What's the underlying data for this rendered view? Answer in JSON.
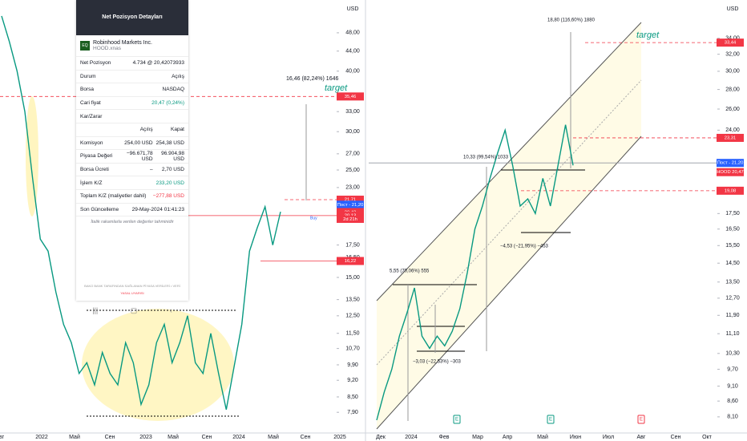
{
  "popup": {
    "title": "Net Pozisyon Detayları",
    "logo": "EQ",
    "company": "Robinhood Markets Inc.",
    "ticker": "HOOD.xnas",
    "rows": [
      [
        "Net Pozisyon",
        "4.734 @ 20,42073933"
      ],
      [
        "Durum",
        "Açılış"
      ],
      [
        "Borsa",
        "NASDAQ"
      ],
      [
        "Cari fiyat",
        "20,47 (0,24%)"
      ],
      [
        "Kar/Zarar",
        ""
      ]
    ],
    "cost_header": [
      "Açılış",
      "Kapat"
    ],
    "cost_rows": [
      [
        "Komisyon",
        "254,00 USD",
        "254,38 USD"
      ],
      [
        "Piyasa Değeri",
        "−96.671,78 USD",
        "96.904,98 USD"
      ],
      [
        "Borsa Ücreti",
        "–",
        "2,70 USD"
      ]
    ],
    "pl_rows": [
      [
        "İşlem K/Z",
        "233,20 USD"
      ],
      [
        "Toplam K/Z (maliyetler dahil)",
        "−277,88 USD"
      ],
      [
        "Son Güncelleme",
        "29-May-2024 01:41:23"
      ]
    ],
    "note": "İtalik rakamlarla verilen değerler tahminidir",
    "footer": "BAKO BANK TARAFINDAN SAĞLANAN PİYASA VERİLERİ • VERİ",
    "footer2": "YASAL UYARISI"
  },
  "chart_data": [
    {
      "type": "line",
      "currency": "USD",
      "log_scale": true,
      "color": "#089981",
      "ylim": [
        7.16,
        56.1
      ],
      "yticks": [
        {
          "value": 48,
          "label": "48,00"
        },
        {
          "value": 44,
          "label": "44,00"
        },
        {
          "value": 40,
          "label": "40,00"
        },
        {
          "value": 33,
          "label": "33,00"
        },
        {
          "value": 30,
          "label": "30,00"
        },
        {
          "value": 27,
          "label": "27,00"
        },
        {
          "value": 25,
          "label": "25,00"
        },
        {
          "value": 23,
          "label": "23,00"
        },
        {
          "value": 17.5,
          "label": "17,50"
        },
        {
          "value": 16.5,
          "label": "16,50"
        },
        {
          "value": 15,
          "label": "15,00"
        },
        {
          "value": 13.5,
          "label": "13,50"
        },
        {
          "value": 12.5,
          "label": "12,50"
        },
        {
          "value": 11.5,
          "label": "11,50"
        },
        {
          "value": 10.7,
          "label": "10,70"
        },
        {
          "value": 9.9,
          "label": "9,90"
        },
        {
          "value": 9.2,
          "label": "9,20"
        },
        {
          "value": 8.5,
          "label": "8,50"
        },
        {
          "value": 7.9,
          "label": "7,90"
        }
      ],
      "x_labels": [
        "вг",
        "2022",
        "Май",
        "Сен",
        "2023",
        "Май",
        "Сен",
        "2024",
        "Май",
        "Сен",
        "2025"
      ],
      "values": [
        52,
        46,
        40,
        33,
        24,
        18,
        17,
        14,
        12,
        11,
        9.5,
        10,
        9,
        10.5,
        9.5,
        9,
        11,
        10,
        8.2,
        9,
        11,
        12,
        10,
        11,
        12.5,
        10,
        9.5,
        11.5,
        9.5,
        8,
        9.8,
        12,
        17,
        19,
        21,
        17.5,
        20.5
      ],
      "price_labels": [
        {
          "value": 35.46,
          "label": "35,46",
          "color": "#f23645"
        },
        {
          "value": 21.71,
          "label": "21,71",
          "color": "#f23645"
        },
        {
          "value": 21.2,
          "label": "Пост - 21,20",
          "color": "#2962ff"
        },
        {
          "value": 20.47,
          "label": "20,47",
          "color": "#f23645"
        },
        {
          "value": 20.42,
          "label": "20,42",
          "color": "#f23645"
        },
        {
          "value": 20.13,
          "label": "20,13",
          "color": "#f23645"
        },
        {
          "value": 16.22,
          "label": "16,22",
          "color": "#f23645"
        }
      ],
      "countdown": "2d 21h",
      "annotations": [
        "16,46 (82,24%) 1646",
        "target",
        "Buy"
      ]
    },
    {
      "type": "line",
      "currency": "USD",
      "log_scale": true,
      "color": "#089981",
      "ylim": [
        7.62,
        39.3
      ],
      "yticks": [
        {
          "value": 34,
          "label": "34,00"
        },
        {
          "value": 32,
          "label": "32,00"
        },
        {
          "value": 30,
          "label": "30,00"
        },
        {
          "value": 28,
          "label": "28,00"
        },
        {
          "value": 26,
          "label": "26,00"
        },
        {
          "value": 24,
          "label": "24,00"
        },
        {
          "value": 17.5,
          "label": "17,50"
        },
        {
          "value": 16.5,
          "label": "16,50"
        },
        {
          "value": 15.5,
          "label": "15,50"
        },
        {
          "value": 14.5,
          "label": "14,50"
        },
        {
          "value": 13.5,
          "label": "13,50"
        },
        {
          "value": 12.7,
          "label": "12,70"
        },
        {
          "value": 11.9,
          "label": "11,90"
        },
        {
          "value": 11.1,
          "label": "11,10"
        },
        {
          "value": 10.3,
          "label": "10,30"
        },
        {
          "value": 9.7,
          "label": "9,70"
        },
        {
          "value": 9.1,
          "label": "9,10"
        },
        {
          "value": 8.6,
          "label": "8,60"
        },
        {
          "value": 8.1,
          "label": "8,10"
        }
      ],
      "x_labels": [
        "Дек",
        "2024",
        "Фев",
        "Мар",
        "Апр",
        "Май",
        "Июн",
        "Июл",
        "Авг",
        "Сен",
        "Окт"
      ],
      "values": [
        8.0,
        8.9,
        9.7,
        11,
        12,
        13.2,
        11,
        10.5,
        11,
        10.6,
        11.2,
        12.2,
        14,
        16.5,
        18,
        20,
        22,
        24,
        21,
        18,
        18.5,
        17.5,
        20,
        18,
        21,
        24.5,
        21
      ],
      "price_labels": [
        {
          "value": 33.44,
          "label": "33,44",
          "color": "#f23645"
        },
        {
          "value": 23.31,
          "label": "23,31",
          "color": "#f23645"
        },
        {
          "value": 21.2,
          "label": "Пост - 21,20",
          "color": "#2962ff"
        },
        {
          "value": 20.47,
          "label": "HOOD 20,47",
          "color": "#f23645"
        },
        {
          "value": 19.08,
          "label": "19,08",
          "color": "#f23645"
        }
      ],
      "annotations": [
        "18,80 (116,60%) 1880",
        "target",
        "10,33 (99,54%) 1033",
        "5,55 (70,06%) 555",
        "−3,03 (−22,53%) −303",
        "−4,53 (−21,95%) −453"
      ],
      "events": [
        "E",
        "E",
        "E"
      ]
    }
  ]
}
